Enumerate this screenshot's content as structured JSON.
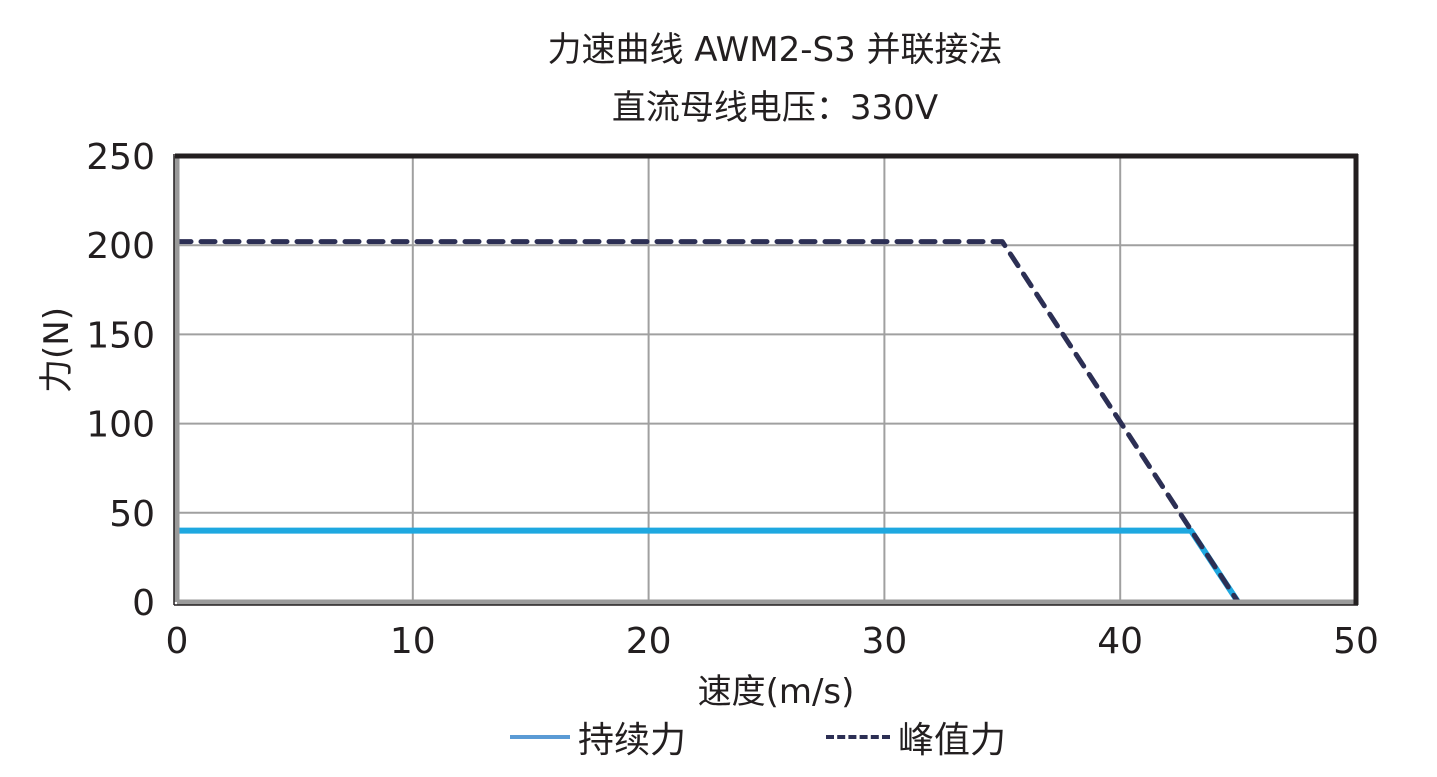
{
  "title": {
    "line1": "力速曲线 AWM2-S3 并联接法",
    "line2": "直流母线电压：330V"
  },
  "axes": {
    "xlabel": "速度(m/s)",
    "ylabel": "力(N)",
    "xticks": [
      "0",
      "10",
      "20",
      "30",
      "40",
      "50"
    ],
    "yticks": [
      "0",
      "50",
      "100",
      "150",
      "200",
      "250"
    ]
  },
  "legend": {
    "continuous": "持续力",
    "peak": "峰值力"
  },
  "colors": {
    "continuous": "#1EA8E0",
    "peak": "#2C2F54",
    "grid": "#A0A0A0",
    "frame": "#231F20"
  },
  "chart_data": {
    "type": "line",
    "title": "力速曲线 AWM2-S3 并联接法 / 直流母线电压：330V",
    "xlabel": "速度(m/s)",
    "ylabel": "力(N)",
    "xlim": [
      0,
      50
    ],
    "ylim": [
      0,
      250
    ],
    "xticks": [
      0,
      10,
      20,
      30,
      40,
      50
    ],
    "yticks": [
      0,
      50,
      100,
      150,
      200,
      250
    ],
    "grid": true,
    "legend_position": "bottom",
    "series": [
      {
        "name": "持续力",
        "style": "solid",
        "color": "#1EA8E0",
        "points": [
          [
            0,
            40
          ],
          [
            43,
            40
          ],
          [
            45,
            0
          ]
        ]
      },
      {
        "name": "峰值力",
        "style": "dashed",
        "color": "#2C2F54",
        "points": [
          [
            0,
            202
          ],
          [
            35,
            202
          ],
          [
            45,
            0
          ]
        ]
      }
    ]
  }
}
